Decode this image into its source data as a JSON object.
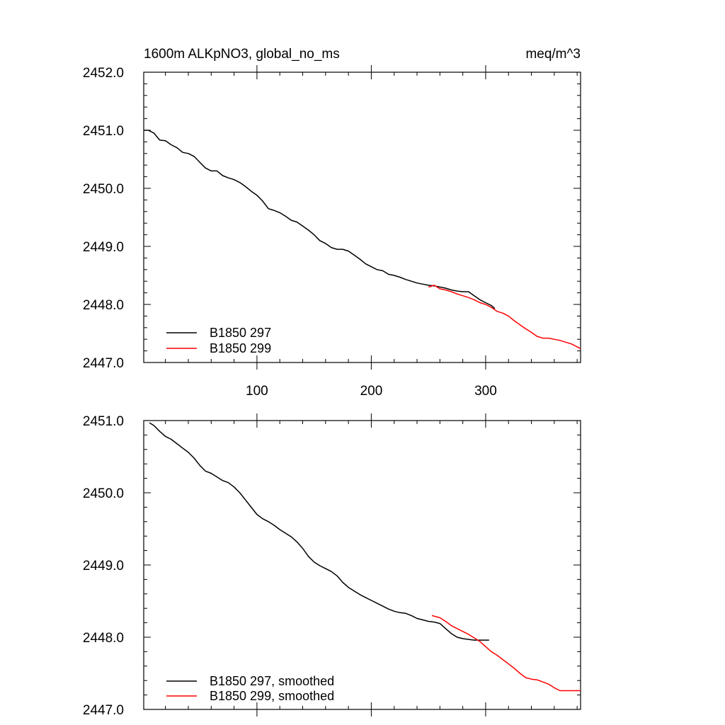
{
  "chart_data": [
    {
      "type": "line",
      "title": "1600m ALKpNO3, global_no_ms",
      "units": "meq/m^3",
      "xlim": [
        1,
        383
      ],
      "ylim": [
        2447.0,
        2452.0
      ],
      "x_ticks": [
        "100",
        "200",
        "300"
      ],
      "x_tick_values": [
        100,
        200,
        300
      ],
      "y_ticks": [
        "2447.0",
        "2448.0",
        "2449.0",
        "2450.0",
        "2451.0",
        "2452.0"
      ],
      "y_tick_values": [
        2447,
        2448,
        2449,
        2450,
        2451,
        2452
      ],
      "legend": [
        "B1850 297",
        "B1850 299"
      ],
      "series": [
        {
          "name": "B1850 297",
          "color": "#000000",
          "x": [
            1,
            5,
            10,
            15,
            20,
            25,
            30,
            35,
            40,
            45,
            50,
            55,
            60,
            65,
            70,
            75,
            80,
            85,
            90,
            95,
            100,
            105,
            110,
            115,
            120,
            125,
            130,
            135,
            140,
            145,
            150,
            155,
            160,
            165,
            170,
            175,
            180,
            185,
            190,
            195,
            200,
            205,
            210,
            215,
            220,
            225,
            230,
            235,
            240,
            245,
            250,
            255,
            260,
            265,
            270,
            275,
            280,
            285,
            290,
            295,
            300,
            305,
            308
          ],
          "values": [
            2451.0,
            2451.0,
            2450.95,
            2450.83,
            2450.82,
            2450.75,
            2450.7,
            2450.62,
            2450.6,
            2450.55,
            2450.45,
            2450.35,
            2450.3,
            2450.3,
            2450.22,
            2450.18,
            2450.15,
            2450.1,
            2450.03,
            2449.95,
            2449.88,
            2449.78,
            2449.65,
            2449.62,
            2449.58,
            2449.52,
            2449.45,
            2449.42,
            2449.35,
            2449.28,
            2449.2,
            2449.1,
            2449.05,
            2448.98,
            2448.95,
            2448.95,
            2448.92,
            2448.85,
            2448.78,
            2448.7,
            2448.65,
            2448.6,
            2448.58,
            2448.52,
            2448.5,
            2448.47,
            2448.43,
            2448.4,
            2448.37,
            2448.35,
            2448.33,
            2448.32,
            2448.3,
            2448.28,
            2448.25,
            2448.23,
            2448.22,
            2448.22,
            2448.15,
            2448.08,
            2448.03,
            2447.98,
            2447.93
          ]
        },
        {
          "name": "B1850 299",
          "color": "#ff0000",
          "x": [
            250,
            255,
            260,
            265,
            270,
            275,
            280,
            285,
            290,
            295,
            300,
            305,
            310,
            315,
            320,
            325,
            330,
            335,
            340,
            345,
            350,
            355,
            360,
            365,
            370,
            375,
            380,
            383
          ],
          "values": [
            2448.3,
            2448.33,
            2448.27,
            2448.25,
            2448.22,
            2448.18,
            2448.15,
            2448.12,
            2448.08,
            2448.03,
            2448.0,
            2447.95,
            2447.88,
            2447.85,
            2447.8,
            2447.72,
            2447.65,
            2447.58,
            2447.52,
            2447.45,
            2447.42,
            2447.42,
            2447.4,
            2447.38,
            2447.35,
            2447.32,
            2447.27,
            2447.24
          ]
        }
      ]
    },
    {
      "type": "line",
      "title": "",
      "xlim": [
        1,
        383
      ],
      "ylim": [
        2447.0,
        2451.0
      ],
      "y_ticks": [
        "2447.0",
        "2448.0",
        "2449.0",
        "2450.0",
        "2451.0"
      ],
      "y_tick_values": [
        2447,
        2448,
        2449,
        2450,
        2451
      ],
      "legend": [
        "B1850 297, smoothed",
        "B1850 299, smoothed"
      ],
      "series": [
        {
          "name": "B1850 297, smoothed",
          "color": "#000000",
          "x": [
            6,
            10,
            15,
            20,
            25,
            30,
            35,
            40,
            45,
            50,
            55,
            60,
            65,
            70,
            75,
            80,
            85,
            90,
            95,
            100,
            105,
            110,
            115,
            120,
            125,
            130,
            135,
            140,
            145,
            150,
            155,
            160,
            165,
            170,
            175,
            180,
            185,
            190,
            195,
            200,
            205,
            210,
            215,
            220,
            225,
            230,
            235,
            240,
            245,
            250,
            255,
            260,
            265,
            270,
            275,
            280,
            285,
            290,
            295,
            300,
            303
          ],
          "values": [
            2450.97,
            2450.93,
            2450.85,
            2450.78,
            2450.74,
            2450.68,
            2450.62,
            2450.56,
            2450.48,
            2450.38,
            2450.3,
            2450.27,
            2450.22,
            2450.17,
            2450.14,
            2450.08,
            2450.0,
            2449.9,
            2449.8,
            2449.7,
            2449.64,
            2449.6,
            2449.55,
            2449.49,
            2449.44,
            2449.39,
            2449.32,
            2449.23,
            2449.12,
            2449.04,
            2448.99,
            2448.95,
            2448.91,
            2448.85,
            2448.76,
            2448.69,
            2448.64,
            2448.59,
            2448.55,
            2448.51,
            2448.47,
            2448.43,
            2448.39,
            2448.36,
            2448.34,
            2448.33,
            2448.3,
            2448.26,
            2448.24,
            2448.22,
            2448.21,
            2448.19,
            2448.12,
            2448.05,
            2448.0,
            2447.98,
            2447.97,
            2447.96,
            2447.96,
            2447.96,
            2447.96
          ]
        },
        {
          "name": "B1850 299, smoothed",
          "color": "#ff0000",
          "x": [
            253,
            260,
            265,
            270,
            275,
            280,
            285,
            290,
            295,
            300,
            305,
            310,
            315,
            320,
            325,
            330,
            335,
            340,
            345,
            350,
            355,
            360,
            365,
            370,
            375,
            380,
            383
          ],
          "values": [
            2448.3,
            2448.27,
            2448.22,
            2448.16,
            2448.12,
            2448.08,
            2448.04,
            2447.99,
            2447.94,
            2447.87,
            2447.8,
            2447.75,
            2447.69,
            2447.63,
            2447.57,
            2447.5,
            2447.44,
            2447.42,
            2447.41,
            2447.38,
            2447.35,
            2447.3,
            2447.26,
            2447.26,
            2447.26,
            2447.26,
            2447.26
          ]
        }
      ]
    }
  ]
}
